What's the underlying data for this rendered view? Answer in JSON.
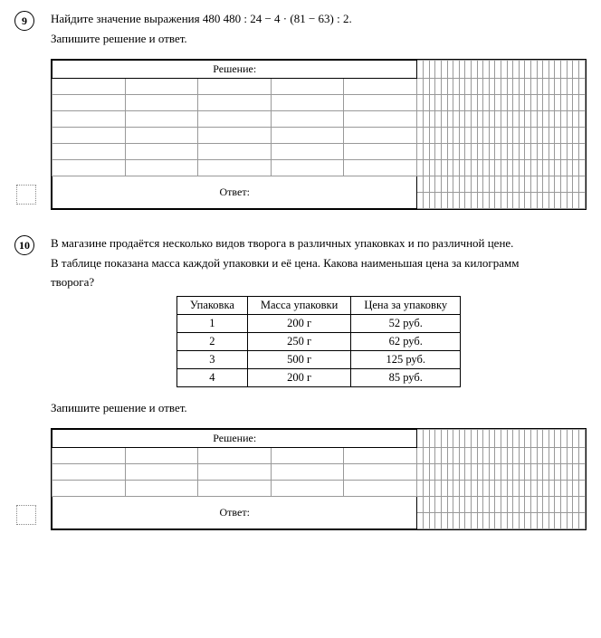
{
  "p9": {
    "number": "9",
    "line1": "Найдите значение выражения 480 480 : 24 − 4 · (81 − 63) : 2.",
    "line2": "Запишите решение и ответ.",
    "solution_label": "Решение:",
    "answer_label": "Ответ:"
  },
  "p10": {
    "number": "10",
    "line1": "В магазине продаётся несколько видов творога в различных упаковках и по различной цене.",
    "line2": "В таблице показана масса каждой упаковки и её цена. Какова наименьшая цена за килограмм",
    "line3": "творога?",
    "table": {
      "headers": [
        "Упаковка",
        "Масса упаковки",
        "Цена за упаковку"
      ],
      "rows": [
        [
          "1",
          "200 г",
          "52 руб."
        ],
        [
          "2",
          "250 г",
          "62 руб."
        ],
        [
          "3",
          "500 г",
          "125 руб."
        ],
        [
          "4",
          "200 г",
          "85 руб."
        ]
      ]
    },
    "instr": "Запишите решение и ответ.",
    "solution_label": "Решение:",
    "answer_label": "Ответ:"
  },
  "grid": {
    "cols": 33,
    "rows_body_9": 6,
    "rows_body_10": 3,
    "label_span": 5,
    "answer_rowspan_9": 2,
    "answer_rowspan_10": 2,
    "cell_border_color": "#999999",
    "frame_border_color": "#000000"
  }
}
